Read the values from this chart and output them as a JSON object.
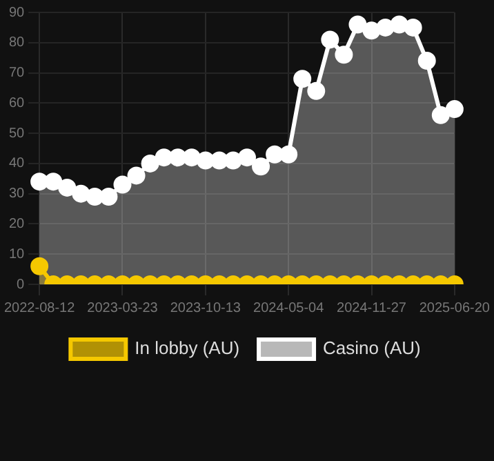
{
  "chart_data": {
    "type": "area",
    "categories": [
      "2022-08-12",
      null,
      null,
      null,
      null,
      null,
      "2023-03-23",
      null,
      null,
      null,
      null,
      null,
      "2023-10-13",
      null,
      null,
      null,
      null,
      null,
      "2024-05-04",
      null,
      null,
      null,
      null,
      null,
      "2024-11-27",
      null,
      null,
      null,
      null,
      null,
      "2025-06-20"
    ],
    "series": [
      {
        "name": "In lobby (AU)",
        "color": "#f5c800",
        "values": [
          6,
          0,
          0,
          0,
          0,
          0,
          0,
          0,
          0,
          0,
          0,
          0,
          0,
          0,
          0,
          0,
          0,
          0,
          0,
          0,
          0,
          0,
          0,
          0,
          0,
          0,
          0,
          0,
          0,
          0,
          0
        ]
      },
      {
        "name": "Casino (AU)",
        "color": "#ffffff",
        "values": [
          34,
          34,
          32,
          30,
          29,
          29,
          33,
          36,
          40,
          42,
          42,
          42,
          41,
          41,
          41,
          42,
          39,
          43,
          43,
          68,
          64,
          81,
          76,
          86,
          84,
          85,
          86,
          85,
          74,
          56,
          58
        ]
      }
    ],
    "ylim": [
      0,
      90
    ],
    "yticks": [
      0,
      10,
      20,
      30,
      40,
      50,
      60,
      70,
      80,
      90
    ],
    "grid": true,
    "legend": "bottom",
    "marker": "circle",
    "line_style": "solid"
  }
}
